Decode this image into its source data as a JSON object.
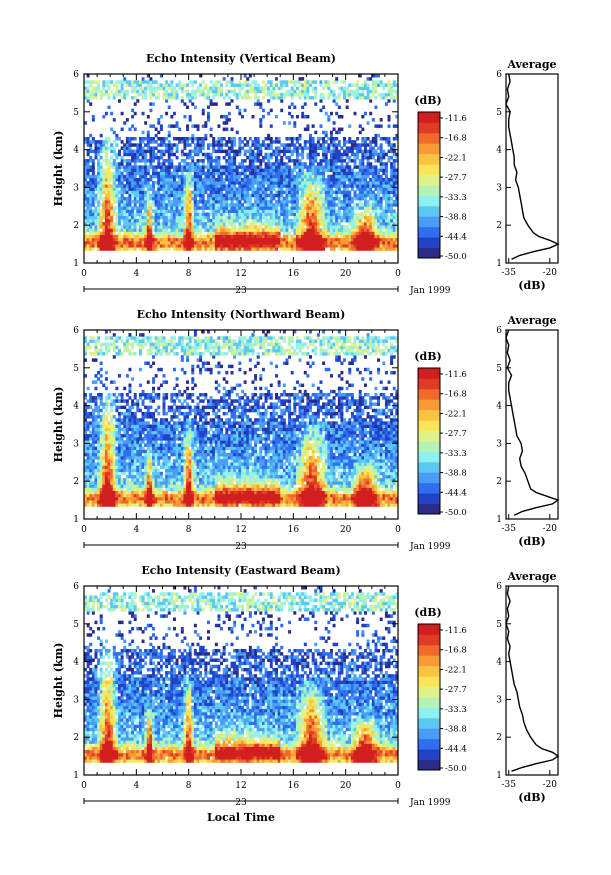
{
  "palette": [
    "#2b2b8a",
    "#2243c7",
    "#2f6ef0",
    "#4a9cf6",
    "#5cc9f2",
    "#8ff0f0",
    "#b6f3b4",
    "#e0f28a",
    "#fbe65a",
    "#fbc440",
    "#f79a35",
    "#ef6a2c",
    "#e23a26",
    "#d11f1f"
  ],
  "chart_data": [
    {
      "type": "heatmap",
      "title": "Echo Intensity (Vertical Beam)",
      "ylabel": "Height (km)",
      "xticks": [
        "0",
        "4",
        "8",
        "12",
        "16",
        "20",
        "0"
      ],
      "yticks": [
        "1",
        "2",
        "3",
        "4",
        "5",
        "6"
      ],
      "ylim": [
        1,
        6
      ],
      "xlim": [
        0,
        24
      ],
      "date_row": {
        "day": "23",
        "month": "Jan 1999"
      },
      "colorbar": {
        "unit": "(dB)",
        "levels": [
          "-11.6",
          "-16.8",
          "-22.1",
          "-27.7",
          "-33.3",
          "-38.8",
          "-44.4",
          "-50.0"
        ]
      },
      "profile": {
        "title": "Average",
        "xlabel": "(dB)",
        "xticks": [
          "-35",
          "-20"
        ],
        "xlim": [
          -36,
          -17
        ],
        "heights": [
          1.1,
          1.2,
          1.3,
          1.4,
          1.5,
          1.6,
          1.7,
          1.8,
          2.0,
          2.2,
          2.4,
          2.6,
          2.8,
          3.0,
          3.2,
          3.4,
          3.6,
          3.8,
          4.0,
          4.2,
          4.4,
          4.6,
          4.8,
          5.0,
          5.2,
          5.4,
          5.6,
          5.8,
          6.0
        ],
        "values": [
          -34,
          -31,
          -26,
          -20,
          -17,
          -20,
          -24,
          -26,
          -28,
          -29.5,
          -30,
          -30.5,
          -31,
          -31.5,
          -32.5,
          -32,
          -33,
          -33,
          -33.5,
          -34,
          -34.5,
          -35,
          -35,
          -34.5,
          -36,
          -35,
          -35.5,
          -34.5,
          -35
        ]
      }
    },
    {
      "type": "heatmap",
      "title": "Echo Intensity (Northward Beam)",
      "ylabel": "Height (km)",
      "xticks": [
        "0",
        "4",
        "8",
        "12",
        "16",
        "20",
        "0"
      ],
      "yticks": [
        "1",
        "2",
        "3",
        "4",
        "5",
        "6"
      ],
      "ylim": [
        1,
        6
      ],
      "xlim": [
        0,
        24
      ],
      "date_row": {
        "day": "23",
        "month": "Jan 1999"
      },
      "colorbar": {
        "unit": "(dB)",
        "levels": [
          "-11.6",
          "-16.8",
          "-22.1",
          "-27.7",
          "-33.3",
          "-38.8",
          "-44.4",
          "-50.0"
        ]
      },
      "profile": {
        "title": "Average",
        "xlabel": "(dB)",
        "xticks": [
          "-35",
          "-20"
        ],
        "xlim": [
          -36,
          -17
        ],
        "heights": [
          1.1,
          1.2,
          1.3,
          1.4,
          1.5,
          1.6,
          1.7,
          1.8,
          2.0,
          2.2,
          2.4,
          2.6,
          2.8,
          3.0,
          3.2,
          3.4,
          3.6,
          3.8,
          4.0,
          4.2,
          4.4,
          4.6,
          4.8,
          5.0,
          5.2,
          5.4,
          5.6,
          5.8,
          6.0
        ],
        "values": [
          -33,
          -30,
          -25,
          -19,
          -17,
          -21,
          -25,
          -27,
          -28,
          -29,
          -30.5,
          -31,
          -30,
          -30.5,
          -32,
          -32.5,
          -33,
          -33.5,
          -34,
          -34.5,
          -35,
          -35,
          -34,
          -35.5,
          -34.5,
          -35.5,
          -35,
          -36,
          -35
        ]
      }
    },
    {
      "type": "heatmap",
      "title": "Echo Intensity (Eastward Beam)",
      "ylabel": "Height (km)",
      "xticks": [
        "0",
        "4",
        "8",
        "12",
        "16",
        "20",
        "0"
      ],
      "yticks": [
        "1",
        "2",
        "3",
        "4",
        "5",
        "6"
      ],
      "ylim": [
        1,
        6
      ],
      "xlim": [
        0,
        24
      ],
      "date_row": {
        "day": "23",
        "month": "Jan 1999"
      },
      "xlabel": "Local Time",
      "colorbar": {
        "unit": "(dB)",
        "levels": [
          "-11.6",
          "-16.8",
          "-22.1",
          "-27.7",
          "-33.3",
          "-38.8",
          "-44.4",
          "-50.0"
        ]
      },
      "profile": {
        "title": "Average",
        "xlabel": "(dB)",
        "xticks": [
          "-35",
          "-20"
        ],
        "xlim": [
          -36,
          -17
        ],
        "heights": [
          1.1,
          1.2,
          1.3,
          1.4,
          1.5,
          1.6,
          1.7,
          1.8,
          2.0,
          2.2,
          2.4,
          2.6,
          2.8,
          3.0,
          3.2,
          3.4,
          3.6,
          3.8,
          4.0,
          4.2,
          4.4,
          4.6,
          4.8,
          5.0,
          5.2,
          5.4,
          5.6,
          5.8,
          6.0
        ],
        "values": [
          -34,
          -30,
          -25,
          -19,
          -17,
          -19,
          -23,
          -25,
          -27,
          -28.5,
          -29.5,
          -30,
          -31,
          -31.5,
          -32,
          -33,
          -33.5,
          -34,
          -34.5,
          -35,
          -34.5,
          -35.5,
          -35,
          -36,
          -35,
          -35.5,
          -34.5,
          -35.5,
          -35
        ]
      }
    }
  ]
}
